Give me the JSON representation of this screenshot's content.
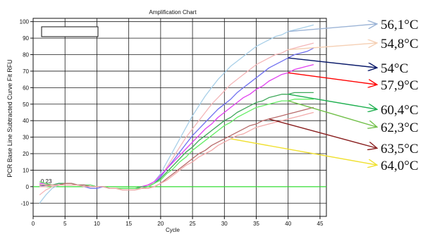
{
  "chart_data": {
    "type": "line",
    "title": "Amplification Chart",
    "xlabel": "Cycle",
    "ylabel": "PCR Base Line Subtracted Curve Fit RFU",
    "xlim": [
      0,
      46
    ],
    "ylim": [
      -18,
      102
    ],
    "x_ticks": [
      0,
      5,
      10,
      15,
      20,
      25,
      30,
      35,
      40,
      45
    ],
    "x_tick_labels": [
      "0",
      "5",
      "10",
      "15",
      "20",
      "25",
      "30",
      "35",
      "40",
      "45"
    ],
    "y_ticks": [
      -10,
      0,
      10,
      20,
      30,
      40,
      50,
      60,
      70,
      80,
      90,
      100
    ],
    "y_tick_labels": [
      "-10",
      "0",
      "10",
      "20",
      "30",
      "40",
      "50",
      "60",
      "70",
      "80",
      "90",
      "100"
    ],
    "threshold": {
      "value": 0,
      "label": "0.23",
      "color": "#33dd33"
    },
    "grid": true,
    "legend": {
      "placement": "top-left",
      "entries": []
    },
    "series": [
      {
        "annotation": "56,1°C",
        "color": "#a8cfe8",
        "arrow_color": "#9cb4d6",
        "x": [
          1,
          2,
          3,
          4,
          5,
          6,
          7,
          8,
          9,
          10,
          11,
          12,
          13,
          14,
          15,
          16,
          17,
          18,
          19,
          20,
          21,
          22,
          23,
          24,
          25,
          26,
          27,
          28,
          29,
          30,
          31,
          32,
          33,
          34,
          35,
          36,
          37,
          38,
          39,
          40,
          41,
          42,
          43,
          44
        ],
        "y": [
          -10,
          -5,
          -1,
          1,
          2,
          2,
          1,
          1,
          1,
          0,
          0,
          -1,
          -1,
          -1,
          -1,
          -1,
          0,
          1,
          3,
          8,
          15,
          22,
          29,
          36,
          43,
          49,
          55,
          60,
          65,
          69,
          73,
          76,
          79,
          82,
          85,
          87,
          89,
          91,
          92,
          94,
          95,
          96,
          97,
          98
        ]
      },
      {
        "annotation": "54,8°C",
        "color": "#f4b6b8",
        "arrow_color": "#f5d0b5",
        "x": [
          1,
          2,
          3,
          4,
          5,
          6,
          7,
          8,
          9,
          10,
          11,
          12,
          13,
          14,
          15,
          16,
          17,
          18,
          19,
          20,
          21,
          22,
          23,
          24,
          25,
          26,
          27,
          28,
          29,
          30,
          31,
          32,
          33,
          34,
          35,
          36,
          37,
          38,
          39,
          40,
          41,
          42,
          43,
          44
        ],
        "y": [
          -5,
          -2,
          0,
          1,
          2,
          2,
          1,
          1,
          1,
          0,
          0,
          -1,
          -1,
          -1,
          -1,
          -1,
          0,
          1,
          2,
          6,
          12,
          18,
          24,
          30,
          35,
          40,
          45,
          50,
          54,
          58,
          62,
          65,
          68,
          71,
          74,
          76,
          78,
          80,
          81,
          83,
          84,
          85,
          86,
          87
        ]
      },
      {
        "annotation": "54°C",
        "color": "#7070f0",
        "arrow_color": "#0a1a6a",
        "x": [
          1,
          2,
          3,
          4,
          5,
          6,
          7,
          8,
          9,
          10,
          11,
          12,
          13,
          14,
          15,
          16,
          17,
          18,
          19,
          20,
          21,
          22,
          23,
          24,
          25,
          26,
          27,
          28,
          29,
          30,
          31,
          32,
          33,
          34,
          35,
          36,
          37,
          38,
          39,
          40,
          41,
          42,
          43,
          44
        ],
        "y": [
          0,
          1,
          1,
          2,
          2,
          2,
          1,
          0,
          -1,
          -1,
          0,
          -1,
          -1,
          -1,
          -1,
          -1,
          -1,
          0,
          2,
          6,
          11,
          16,
          21,
          26,
          31,
          35,
          39,
          43,
          47,
          50,
          53,
          57,
          60,
          63,
          66,
          69,
          72,
          74,
          76,
          78,
          80,
          81,
          82,
          84
        ]
      },
      {
        "annotation": "57,9°C",
        "color": "#e040f0",
        "arrow_color": "#ff0000",
        "x": [
          1,
          2,
          3,
          4,
          5,
          6,
          7,
          8,
          9,
          10,
          11,
          12,
          13,
          14,
          15,
          16,
          17,
          18,
          19,
          20,
          21,
          22,
          23,
          24,
          25,
          26,
          27,
          28,
          29,
          30,
          31,
          32,
          33,
          34,
          35,
          36,
          37,
          38,
          39,
          40,
          41,
          42,
          43,
          44
        ],
        "y": [
          2,
          2,
          1,
          1,
          2,
          2,
          1,
          1,
          1,
          0,
          0,
          -1,
          -1,
          -1,
          -1,
          -1,
          0,
          1,
          3,
          7,
          11,
          15,
          19,
          23,
          27,
          31,
          35,
          38,
          42,
          45,
          48,
          51,
          54,
          56,
          59,
          61,
          64,
          66,
          68,
          69,
          71,
          72,
          73,
          74
        ]
      },
      {
        "annotation": "60,4°C",
        "color": "#3fa85a",
        "arrow_color": "#1fb050",
        "x": [
          1,
          2,
          3,
          4,
          5,
          6,
          7,
          8,
          9,
          10,
          11,
          12,
          13,
          14,
          15,
          16,
          17,
          18,
          19,
          20,
          21,
          22,
          23,
          24,
          25,
          26,
          27,
          28,
          29,
          30,
          31,
          32,
          33,
          34,
          35,
          36,
          37,
          38,
          39,
          40,
          41,
          42,
          43,
          44
        ],
        "y": [
          1,
          1,
          1,
          2,
          2,
          2,
          1,
          1,
          0,
          0,
          0,
          -1,
          -1,
          -1,
          -1,
          -1,
          0,
          0,
          2,
          5,
          9,
          13,
          17,
          21,
          24,
          28,
          31,
          34,
          37,
          40,
          42,
          45,
          47,
          49,
          51,
          52,
          54,
          55,
          56,
          56,
          57,
          57,
          57,
          57
        ]
      },
      {
        "annotation": "62,3°C",
        "color": "#66ee66",
        "arrow_color": "#72c04a",
        "x": [
          1,
          2,
          3,
          4,
          5,
          6,
          7,
          8,
          9,
          10,
          11,
          12,
          13,
          14,
          15,
          16,
          17,
          18,
          19,
          20,
          21,
          22,
          23,
          24,
          25,
          26,
          27,
          28,
          29,
          30,
          31,
          32,
          33,
          34,
          35,
          36,
          37,
          38,
          39,
          40,
          41,
          42,
          43,
          44
        ],
        "y": [
          3,
          2,
          1,
          1,
          2,
          2,
          1,
          1,
          1,
          0,
          0,
          -1,
          -1,
          -1,
          -1,
          -1,
          -1,
          0,
          2,
          4,
          8,
          11,
          15,
          18,
          22,
          25,
          28,
          31,
          34,
          37,
          39,
          42,
          44,
          46,
          48,
          49,
          50,
          51,
          52,
          52,
          53,
          53,
          53,
          53
        ]
      },
      {
        "annotation": "63,5°C",
        "color": "#b86a6a",
        "arrow_color": "#8a2020",
        "x": [
          1,
          2,
          3,
          4,
          5,
          6,
          7,
          8,
          9,
          10,
          11,
          12,
          13,
          14,
          15,
          16,
          17,
          18,
          19,
          20,
          21,
          22,
          23,
          24,
          25,
          26,
          27,
          28,
          29,
          30,
          31,
          32,
          33,
          34,
          35,
          36,
          37,
          38,
          39,
          40,
          41,
          42,
          43,
          44
        ],
        "y": [
          1,
          1,
          1,
          1,
          2,
          2,
          1,
          1,
          0,
          0,
          0,
          -1,
          -1,
          -2,
          -2,
          -2,
          -1,
          -1,
          0,
          2,
          5,
          8,
          11,
          14,
          17,
          20,
          22,
          25,
          27,
          29,
          31,
          33,
          35,
          37,
          38,
          40,
          41,
          42,
          43,
          44,
          45,
          46,
          47,
          48
        ]
      },
      {
        "annotation": "64,0°C",
        "color": "#f2aaaa",
        "arrow_color": "#f0e030",
        "x": [
          1,
          2,
          3,
          4,
          5,
          6,
          7,
          8,
          9,
          10,
          11,
          12,
          13,
          14,
          15,
          16,
          17,
          18,
          19,
          20,
          21,
          22,
          23,
          24,
          25,
          26,
          27,
          28,
          29,
          30,
          31,
          32,
          33,
          34,
          35,
          36,
          37,
          38,
          39,
          40,
          41,
          42,
          43,
          44
        ],
        "y": [
          0,
          0,
          1,
          1,
          1,
          1,
          1,
          0,
          0,
          0,
          0,
          -1,
          -1,
          -2,
          -2,
          -2,
          -1,
          -1,
          0,
          2,
          4,
          7,
          10,
          13,
          15,
          18,
          20,
          22,
          25,
          27,
          29,
          31,
          32,
          34,
          36,
          37,
          38,
          39,
          40,
          41,
          42,
          43,
          44,
          45
        ]
      }
    ]
  }
}
